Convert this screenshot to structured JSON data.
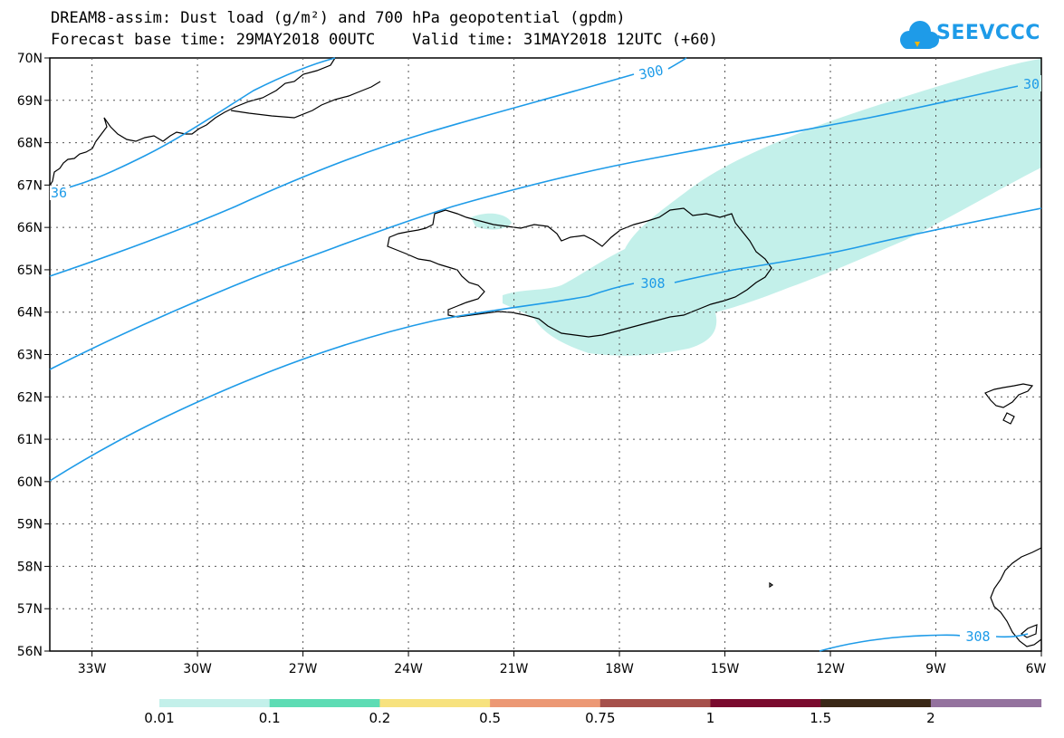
{
  "title_line1": "DREAM8-assim: Dust load (g/m²) and 700 hPa geopotential (gpdm)",
  "title_line2": "Forecast base time: 29MAY2018 00UTC    Valid time: 31MAY2018 12UTC (+60)",
  "logo": {
    "text": "SEEVCCC",
    "icon": "cloud-icon",
    "color": "#1e9be8"
  },
  "map": {
    "lon_ticks": [
      "33W",
      "30W",
      "27W",
      "24W",
      "21W",
      "18W",
      "15W",
      "12W",
      "9W",
      "6W"
    ],
    "lat_ticks": [
      "70N",
      "69N",
      "68N",
      "67N",
      "66N",
      "65N",
      "64N",
      "63N",
      "62N",
      "61N",
      "60N",
      "59N",
      "58N",
      "57N",
      "56N"
    ],
    "contour_color": "#1e9be8",
    "contour_labels": [
      "300",
      "30",
      "36",
      "308",
      "308"
    ]
  },
  "colorbar": {
    "labels": [
      "0.01",
      "0.1",
      "0.2",
      "0.5",
      "0.75",
      "1",
      "1.5",
      "2"
    ],
    "colors": [
      "#c3f0ea",
      "#5ddcb4",
      "#f7e27e",
      "#ec9874",
      "#a6504b",
      "#7a0b2e",
      "#3a2817",
      "#94729e"
    ]
  }
}
